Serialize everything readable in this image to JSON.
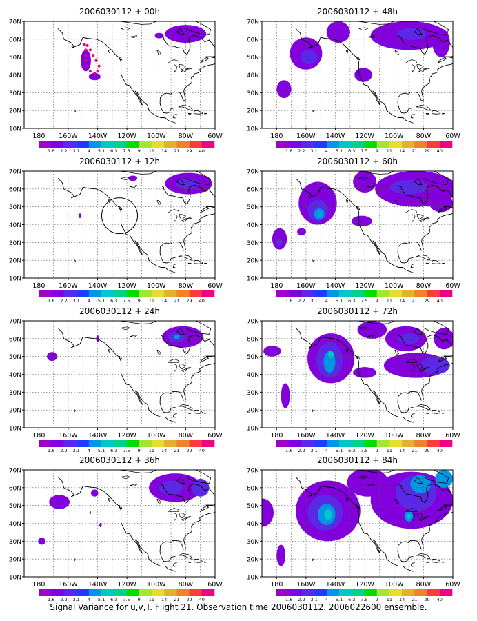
{
  "figure": {
    "caption": "Signal Variance for u,v,T. Flight 21. Observation time 2006030112. 2006022600 ensemble.",
    "x_tick_labels": [
      "180",
      "160W",
      "140W",
      "120W",
      "100W",
      "80W",
      "60W"
    ],
    "y_tick_labels": [
      "10N",
      "20N",
      "30N",
      "40N",
      "50N",
      "60N",
      "70N"
    ],
    "colorbar": {
      "labels": [
        "1.6",
        "2.2",
        "3.1",
        "4",
        "5.1",
        "6.3",
        "7.5",
        "9",
        "11",
        "14",
        "21",
        "29",
        "40"
      ],
      "colors": [
        "#a000c8",
        "#8200dc",
        "#5a28e6",
        "#1e3cff",
        "#0096e6",
        "#00c8c8",
        "#00d28c",
        "#00dc00",
        "#a0e632",
        "#e6dc32",
        "#e6af2d",
        "#f08228",
        "#fa3c3c",
        "#f00082"
      ]
    },
    "panels": [
      {
        "title": "2006030112 + 00h",
        "marker": "dotted-track",
        "blobs": [
          {
            "lon": -148,
            "lat": 48,
            "rx": 3.5,
            "ry": 6,
            "level": 0
          },
          {
            "lon": -142,
            "lat": 39,
            "rx": 4,
            "ry": 2,
            "level": 0
          },
          {
            "lon": -80,
            "lat": 63,
            "rx": 14,
            "ry": 5,
            "level": 0
          },
          {
            "lon": -98,
            "lat": 62,
            "rx": 3,
            "ry": 1.5,
            "level": 0
          }
        ]
      },
      {
        "title": "2006030112 + 48h",
        "marker": "",
        "blobs": [
          {
            "lon": -160,
            "lat": 52,
            "rx": 11,
            "ry": 9,
            "level": 0
          },
          {
            "lon": -158,
            "lat": 50,
            "rx": 6,
            "ry": 4,
            "level": 1
          },
          {
            "lon": -175,
            "lat": 32,
            "rx": 5,
            "ry": 5,
            "level": 0
          },
          {
            "lon": -138,
            "lat": 64,
            "rx": 8,
            "ry": 6,
            "level": 0
          },
          {
            "lon": -121,
            "lat": 40,
            "rx": 6,
            "ry": 4,
            "level": 0
          },
          {
            "lon": -90,
            "lat": 62,
            "rx": 26,
            "ry": 8,
            "level": 0
          },
          {
            "lon": -88,
            "lat": 63,
            "rx": 10,
            "ry": 3.5,
            "level": 1
          },
          {
            "lon": -68,
            "lat": 58,
            "rx": 6,
            "ry": 8,
            "level": 0
          }
        ]
      },
      {
        "title": "2006030112 + 12h",
        "marker": "circle",
        "blobs": [
          {
            "lon": -78,
            "lat": 63,
            "rx": 16,
            "ry": 6,
            "level": 0
          },
          {
            "lon": -79,
            "lat": 63,
            "rx": 8,
            "ry": 3,
            "level": 1
          },
          {
            "lon": -116,
            "lat": 66,
            "rx": 3,
            "ry": 1.5,
            "level": 0
          },
          {
            "lon": -152,
            "lat": 45,
            "rx": 1,
            "ry": 1.3,
            "level": 0
          }
        ]
      },
      {
        "title": "2006030112 + 60h",
        "marker": "",
        "blobs": [
          {
            "lon": -152,
            "lat": 52,
            "rx": 13,
            "ry": 12,
            "level": 0
          },
          {
            "lon": -152,
            "lat": 48,
            "rx": 7,
            "ry": 6,
            "level": 1
          },
          {
            "lon": -151,
            "lat": 46,
            "rx": 3.5,
            "ry": 3,
            "level": 2
          },
          {
            "lon": -178,
            "lat": 32,
            "rx": 5,
            "ry": 6,
            "level": 0
          },
          {
            "lon": -178,
            "lat": 30,
            "rx": 2,
            "ry": 2,
            "level": 1
          },
          {
            "lon": -163,
            "lat": 36,
            "rx": 3,
            "ry": 2,
            "level": 0
          },
          {
            "lon": -122,
            "lat": 42,
            "rx": 7,
            "ry": 3,
            "level": 0
          },
          {
            "lon": -120,
            "lat": 64,
            "rx": 8,
            "ry": 6,
            "level": 0
          },
          {
            "lon": -85,
            "lat": 60,
            "rx": 28,
            "ry": 10,
            "level": 0
          },
          {
            "lon": -90,
            "lat": 61,
            "rx": 13,
            "ry": 4,
            "level": 1
          },
          {
            "lon": -68,
            "lat": 52,
            "rx": 8,
            "ry": 5,
            "level": 0
          }
        ]
      },
      {
        "title": "2006030112 + 24h",
        "marker": "",
        "blobs": [
          {
            "lon": -82,
            "lat": 61,
            "rx": 14,
            "ry": 6,
            "level": 0
          },
          {
            "lon": -86,
            "lat": 61,
            "rx": 6,
            "ry": 3,
            "level": 1
          },
          {
            "lon": -86,
            "lat": 61,
            "rx": 2,
            "ry": 1.2,
            "level": 2
          },
          {
            "lon": -171,
            "lat": 50,
            "rx": 3.5,
            "ry": 2.5,
            "level": 0
          },
          {
            "lon": -140,
            "lat": 60,
            "rx": 1,
            "ry": 2,
            "level": 0
          }
        ]
      },
      {
        "title": "2006030112 + 72h",
        "marker": "",
        "blobs": [
          {
            "lon": -143,
            "lat": 49,
            "rx": 16,
            "ry": 14,
            "level": 0
          },
          {
            "lon": -144,
            "lat": 48,
            "rx": 9,
            "ry": 10,
            "level": 1
          },
          {
            "lon": -144,
            "lat": 47,
            "rx": 4,
            "ry": 6,
            "level": 2
          },
          {
            "lon": -143,
            "lat": 51,
            "rx": 2,
            "ry": 2,
            "level": 3
          },
          {
            "lon": -174,
            "lat": 28,
            "rx": 3,
            "ry": 7,
            "level": 0
          },
          {
            "lon": -183,
            "lat": 53,
            "rx": 6,
            "ry": 3,
            "level": 0
          },
          {
            "lon": -115,
            "lat": 65,
            "rx": 10,
            "ry": 5,
            "level": 0
          },
          {
            "lon": -92,
            "lat": 60,
            "rx": 14,
            "ry": 7,
            "level": 0
          },
          {
            "lon": -90,
            "lat": 60,
            "rx": 7,
            "ry": 3,
            "level": 1
          },
          {
            "lon": -85,
            "lat": 45,
            "rx": 22,
            "ry": 7,
            "level": 0
          },
          {
            "lon": -72,
            "lat": 45,
            "rx": 10,
            "ry": 5,
            "level": 1
          },
          {
            "lon": -120,
            "lat": 41,
            "rx": 8,
            "ry": 3,
            "level": 0
          },
          {
            "lon": -66,
            "lat": 60,
            "rx": 7,
            "ry": 6,
            "level": 0
          }
        ]
      },
      {
        "title": "2006030112 + 36h",
        "marker": "",
        "blobs": [
          {
            "lon": -87,
            "lat": 60,
            "rx": 18,
            "ry": 8,
            "level": 0
          },
          {
            "lon": -90,
            "lat": 60,
            "rx": 8,
            "ry": 4,
            "level": 1
          },
          {
            "lon": -70,
            "lat": 60,
            "rx": 6,
            "ry": 5,
            "level": 1
          },
          {
            "lon": -166,
            "lat": 52,
            "rx": 7,
            "ry": 4,
            "level": 0
          },
          {
            "lon": -142,
            "lat": 57,
            "rx": 2.5,
            "ry": 2,
            "level": 0
          },
          {
            "lon": -178,
            "lat": 30,
            "rx": 2.5,
            "ry": 2,
            "level": 0
          },
          {
            "lon": -138,
            "lat": 39,
            "rx": 0.8,
            "ry": 1.2,
            "level": 0
          },
          {
            "lon": -145,
            "lat": 46,
            "rx": 0.5,
            "ry": 1,
            "level": 0
          }
        ]
      },
      {
        "title": "2006030112 + 84h",
        "marker": "",
        "blobs": [
          {
            "lon": -145,
            "lat": 47,
            "rx": 22,
            "ry": 17,
            "level": 0
          },
          {
            "lon": -147,
            "lat": 46,
            "rx": 12,
            "ry": 10,
            "level": 1
          },
          {
            "lon": -146,
            "lat": 45,
            "rx": 6,
            "ry": 6,
            "level": 2
          },
          {
            "lon": -145,
            "lat": 45,
            "rx": 2.5,
            "ry": 3,
            "level": 3
          },
          {
            "lon": -177,
            "lat": 22,
            "rx": 3,
            "ry": 6,
            "level": 0
          },
          {
            "lon": -190,
            "lat": 46,
            "rx": 8,
            "ry": 8,
            "level": 0
          },
          {
            "lon": -88,
            "lat": 53,
            "rx": 28,
            "ry": 16,
            "level": 0
          },
          {
            "lon": -85,
            "lat": 57,
            "rx": 14,
            "ry": 10,
            "level": 1
          },
          {
            "lon": -82,
            "lat": 62,
            "rx": 7,
            "ry": 5,
            "level": 2
          },
          {
            "lon": -90,
            "lat": 44,
            "rx": 3,
            "ry": 3,
            "level": 2
          },
          {
            "lon": -90,
            "lat": 44,
            "rx": 1.2,
            "ry": 1.5,
            "level": 3
          },
          {
            "lon": -66,
            "lat": 65,
            "rx": 6,
            "ry": 5,
            "level": 2
          },
          {
            "lon": -118,
            "lat": 63,
            "rx": 14,
            "ry": 8,
            "level": 0
          }
        ]
      }
    ]
  }
}
